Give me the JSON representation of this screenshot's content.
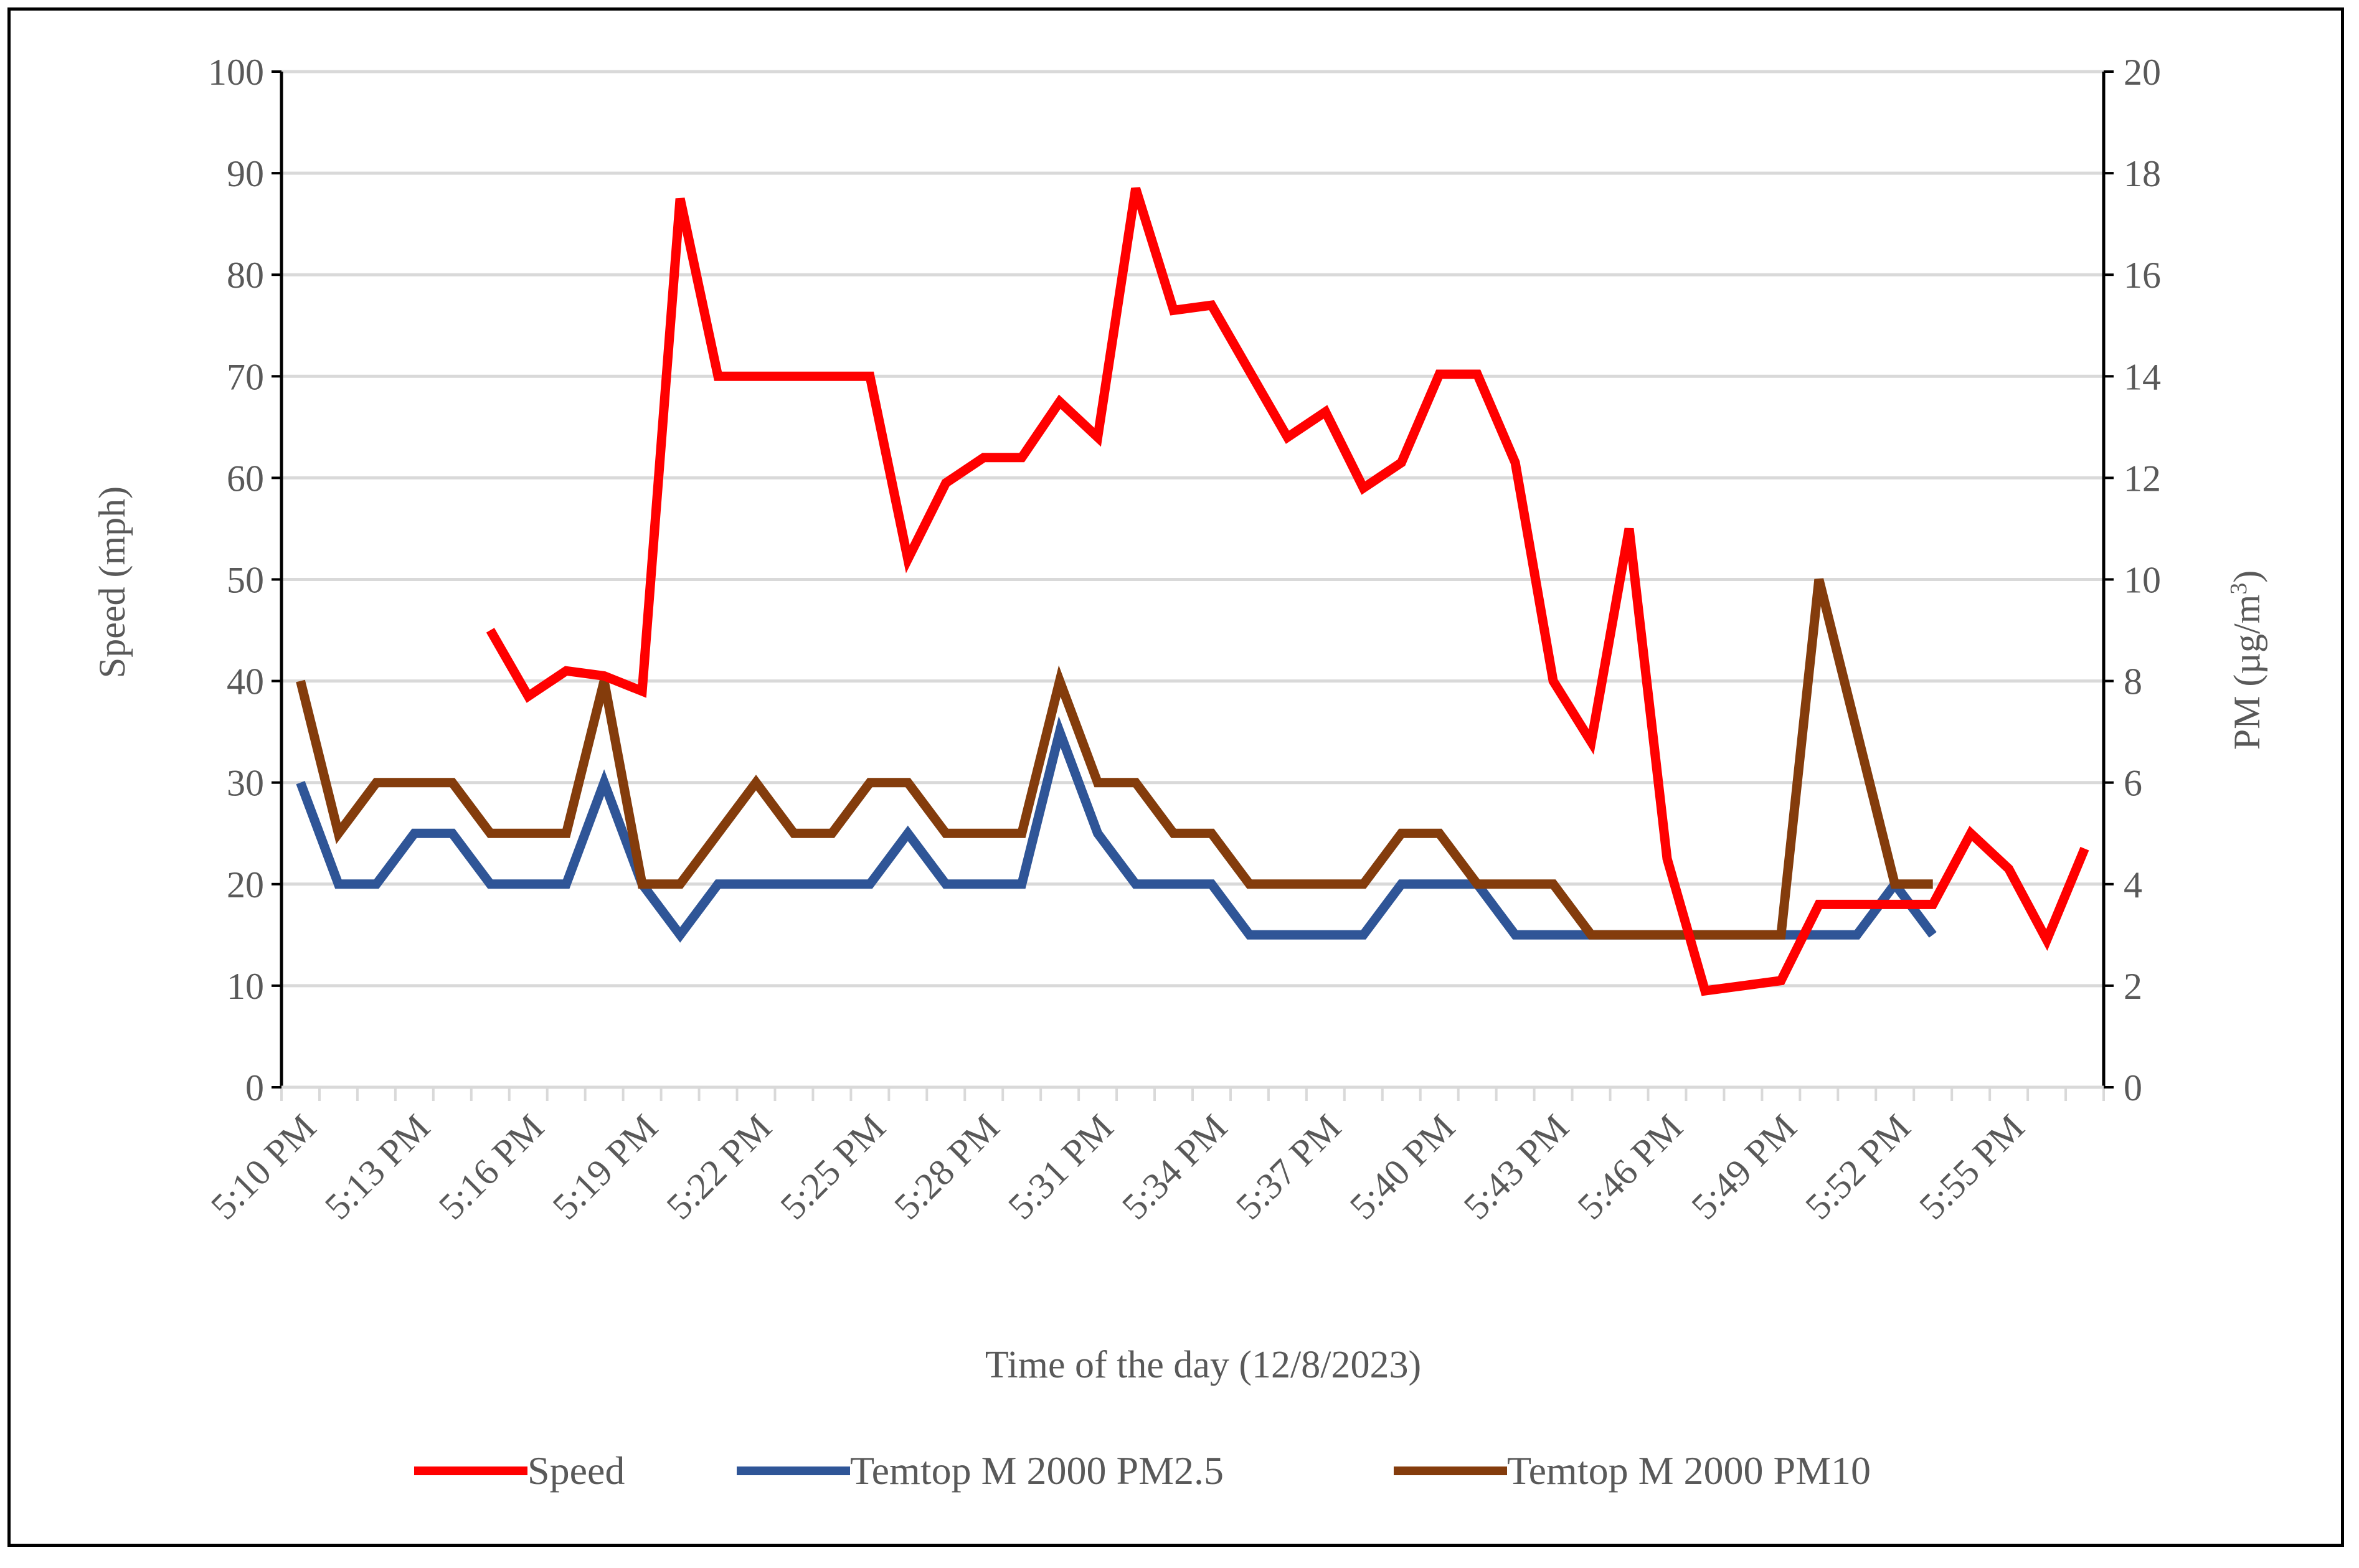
{
  "chart_data": {
    "type": "line",
    "xlabel": "Time of the day (12/8/2023)",
    "ylabel_left": "Speed (mph)",
    "ylabel_right": "PM (µg/m³)",
    "ylabel_right_base": "PM (µg/m",
    "ylabel_right_sup": "3",
    "ylabel_right_end": ")",
    "ylim_left": [
      0,
      100
    ],
    "ylim_right": [
      0,
      20
    ],
    "yticks_left": [
      "0",
      "10",
      "20",
      "30",
      "40",
      "50",
      "60",
      "70",
      "80",
      "90",
      "100"
    ],
    "yticks_right": [
      "0",
      "2",
      "4",
      "6",
      "8",
      "10",
      "12",
      "14",
      "16",
      "18",
      "20"
    ],
    "grid": true,
    "legend_position": "bottom",
    "categories": [
      "5:10 PM",
      "5:11 PM",
      "5:12 PM",
      "5:13 PM",
      "5:14 PM",
      "5:15 PM",
      "5:16 PM",
      "5:17 PM",
      "5:18 PM",
      "5:19 PM",
      "5:20 PM",
      "5:21 PM",
      "5:22 PM",
      "5:23 PM",
      "5:24 PM",
      "5:25 PM",
      "5:26 PM",
      "5:27 PM",
      "5:28 PM",
      "5:29 PM",
      "5:30 PM",
      "5:31 PM",
      "5:32 PM",
      "5:33 PM",
      "5:34 PM",
      "5:35 PM",
      "5:36 PM",
      "5:37 PM",
      "5:38 PM",
      "5:39 PM",
      "5:40 PM",
      "5:41 PM",
      "5:42 PM",
      "5:43 PM",
      "5:44 PM",
      "5:45 PM",
      "5:46 PM",
      "5:47 PM",
      "5:48 PM",
      "5:49 PM",
      "5:50 PM",
      "5:51 PM",
      "5:52 PM",
      "5:53 PM",
      "5:54 PM",
      "5:55 PM",
      "5:56 PM",
      "5:57 PM"
    ],
    "tick_labels": [
      "5:10 PM",
      "5:13 PM",
      "5:16 PM",
      "5:19 PM",
      "5:22 PM",
      "5:25 PM",
      "5:28 PM",
      "5:31 PM",
      "5:34 PM",
      "5:37 PM",
      "5:40 PM",
      "5:43 PM",
      "5:46 PM",
      "5:49 PM",
      "5:52 PM",
      "5:55 PM"
    ],
    "series": [
      {
        "name": "Speed",
        "color": "#ff0000",
        "axis": "left",
        "values": [
          null,
          null,
          null,
          null,
          null,
          45,
          38.5,
          41,
          40.5,
          39,
          87.5,
          70,
          70,
          70,
          70,
          70,
          52,
          59.5,
          62,
          62,
          67.5,
          64,
          88.5,
          76.5,
          77,
          70.5,
          64,
          66.5,
          59,
          61.5,
          70.2,
          70.2,
          61.5,
          40,
          34,
          55,
          22.5,
          9.5,
          10,
          10.5,
          18,
          18,
          18,
          18,
          25,
          21.5,
          14.5,
          23.5
        ]
      },
      {
        "name": "Temtop M 2000 PM2.5",
        "color": "#2f5597",
        "axis": "right",
        "values": [
          6,
          4,
          4,
          5,
          5,
          4,
          4,
          4,
          6,
          4,
          3,
          4,
          4,
          4,
          4,
          4,
          5,
          4,
          4,
          4,
          7,
          5,
          4,
          4,
          4,
          3,
          3,
          3,
          3,
          4,
          4,
          4,
          3,
          3,
          3,
          3,
          3,
          3,
          3,
          3,
          3,
          3,
          4,
          3,
          null,
          null,
          null,
          null
        ]
      },
      {
        "name": "Temtop M 2000 PM10",
        "color": "#843c0c",
        "axis": "right",
        "values": [
          8,
          5,
          6,
          6,
          6,
          5,
          5,
          5,
          8,
          4,
          4,
          5,
          6,
          5,
          5,
          6,
          6,
          5,
          5,
          5,
          8,
          6,
          6,
          5,
          5,
          4,
          4,
          4,
          4,
          5,
          5,
          4,
          4,
          4,
          3,
          3,
          3,
          3,
          3,
          3,
          10,
          7,
          4,
          4,
          null,
          null,
          null,
          null
        ]
      }
    ]
  }
}
